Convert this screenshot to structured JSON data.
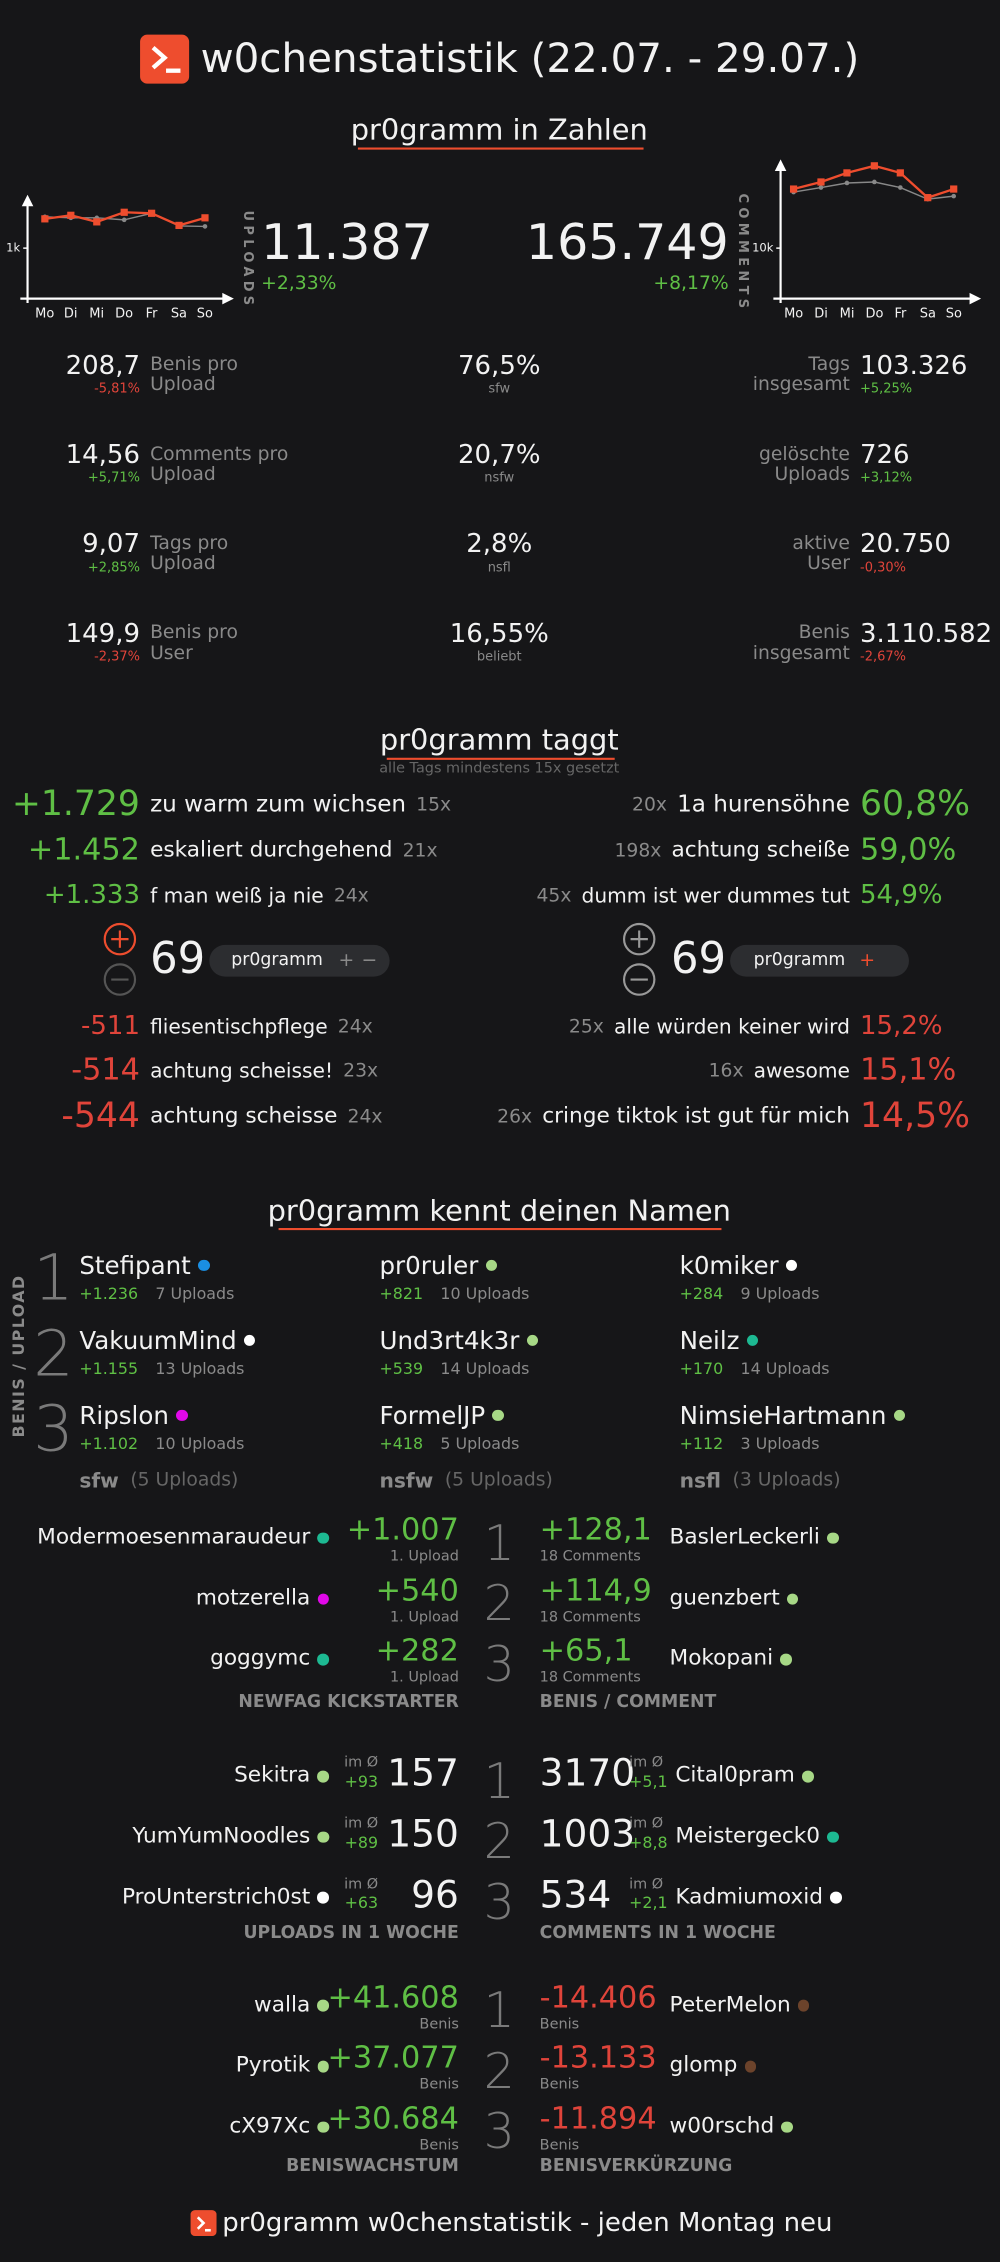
{
  "header": {
    "title": "w0chenstatistik (22.07. - 29.07.)"
  },
  "zahlen": {
    "title": "pr0gramm in Zahlen",
    "uploads": {
      "label": "UPLOADS",
      "value": "11.387",
      "change": "+2,33%"
    },
    "comments": {
      "label": "COMMENTS",
      "value": "165.749",
      "change": "+8,17%"
    },
    "left": [
      {
        "value": "208,7",
        "change": "-5,81%",
        "label": [
          "Benis pro",
          "Upload"
        ]
      },
      {
        "value": "14,56",
        "change": "+5,71%",
        "label": [
          "Comments pro",
          "Upload"
        ]
      },
      {
        "value": "9,07",
        "change": "+2,85%",
        "label": [
          "Tags pro",
          "Upload"
        ]
      },
      {
        "value": "149,9",
        "change": "-2,37%",
        "label": [
          "Benis pro",
          "User"
        ]
      }
    ],
    "middle": [
      {
        "value": "76,5%",
        "label": "sfw"
      },
      {
        "value": "20,7%",
        "label": "nsfw"
      },
      {
        "value": "2,8%",
        "label": "nsfl"
      },
      {
        "value": "16,55%",
        "label": "beliebt"
      }
    ],
    "right": [
      {
        "label": [
          "Tags",
          "insgesamt"
        ],
        "value": "103.326",
        "change": "+5,25%"
      },
      {
        "label": [
          "gelöschte",
          "Uploads"
        ],
        "value": "726",
        "change": "+3,12%"
      },
      {
        "label": [
          "aktive",
          "User"
        ],
        "value": "20.750",
        "change": "-0,30%"
      },
      {
        "label": [
          "Benis",
          "insgesamt"
        ],
        "value": "3.110.582",
        "change": "-2,67%"
      }
    ]
  },
  "chart_data": [
    {
      "type": "line",
      "categories": [
        "Mo",
        "Di",
        "Mi",
        "Do",
        "Fr",
        "Sa",
        "So"
      ],
      "ylim": [
        0,
        2000
      ],
      "yticks": [
        {
          "value": 1000,
          "label": "1k"
        }
      ],
      "series": [
        {
          "color": "#888888",
          "marker": "dot",
          "values": [
            1620,
            1600,
            1600,
            1560,
            1690,
            1440,
            1430
          ]
        },
        {
          "color": "#ee4d2e",
          "marker": "square",
          "values": [
            1580,
            1650,
            1520,
            1710,
            1690,
            1450,
            1600
          ]
        }
      ]
    },
    {
      "type": "line",
      "categories": [
        "Mo",
        "Di",
        "Mi",
        "Do",
        "Fr",
        "Sa",
        "So"
      ],
      "ylim": [
        0,
        27000
      ],
      "yticks": [
        {
          "value": 10000,
          "label": "10k"
        }
      ],
      "series": [
        {
          "color": "#888888",
          "marker": "dot",
          "values": [
            21100,
            22000,
            22900,
            23100,
            22000,
            19700,
            20300
          ]
        },
        {
          "color": "#ee4d2e",
          "marker": "square",
          "values": [
            21700,
            23100,
            24900,
            26300,
            24900,
            20000,
            21700
          ]
        }
      ]
    }
  ],
  "taggt": {
    "title": "pr0gramm taggt",
    "subtitle": "alle Tags mindestens 15x gesetzt",
    "top_benis": [
      {
        "value": "+1.729",
        "tag": "zu warm zum wichsen",
        "count": "15x"
      },
      {
        "value": "+1.452",
        "tag": "eskaliert durchgehend",
        "count": "21x"
      },
      {
        "value": "+1.333",
        "tag": "f man weiß ja nie",
        "count": "24x"
      }
    ],
    "low_benis": [
      {
        "value": "-511",
        "tag": "fliesentischpflege",
        "count": "24x"
      },
      {
        "value": "-514",
        "tag": "achtung scheisse!",
        "count": "23x"
      },
      {
        "value": "-544",
        "tag": "achtung scheisse",
        "count": "24x"
      }
    ],
    "top_ratio": [
      {
        "count": "20x",
        "tag": "1a hurensöhne",
        "value": "60,8%"
      },
      {
        "count": "198x",
        "tag": "achtung scheiße",
        "value": "59,0%"
      },
      {
        "count": "45x",
        "tag": "dumm ist wer dummes tut",
        "value": "54,9%"
      }
    ],
    "low_ratio": [
      {
        "count": "25x",
        "tag": "alle würden keiner wird",
        "value": "15,2%"
      },
      {
        "count": "16x",
        "tag": "awesome",
        "value": "15,1%"
      },
      {
        "count": "26x",
        "tag": "cringe tiktok ist gut für mich",
        "value": "14,5%"
      }
    ],
    "widgets": [
      {
        "score": "69",
        "tag": "pr0gramm",
        "plus": "+",
        "minus": "−"
      },
      {
        "score": "69",
        "tag": "pr0gramm",
        "plus": "+"
      }
    ]
  },
  "ranks": [
    "1",
    "2",
    "3"
  ],
  "namen": {
    "title": "pr0gramm kennt deinen Namen",
    "side_label": "BENIS / UPLOAD",
    "columns": [
      {
        "users": [
          {
            "name": "Stefipant",
            "color": "#1a8fe3",
            "benis": "+1.236",
            "uploads": "7 Uploads"
          },
          {
            "name": "VakuumMind",
            "color": "#ffffff",
            "benis": "+1.155",
            "uploads": "13 Uploads"
          },
          {
            "name": "Ripslon",
            "color": "#e108e9",
            "benis": "+1.102",
            "uploads": "10 Uploads"
          }
        ],
        "footer": "sfw",
        "footer_count": "(5 Uploads)"
      },
      {
        "users": [
          {
            "name": "pr0ruler",
            "color": "#a7d886",
            "benis": "+821",
            "uploads": "10 Uploads"
          },
          {
            "name": "Und3rt4k3r",
            "color": "#a7d886",
            "benis": "+539",
            "uploads": "14 Uploads"
          },
          {
            "name": "FormelJP",
            "color": "#a7d886",
            "benis": "+418",
            "uploads": "5 Uploads"
          }
        ],
        "footer": "nsfw",
        "footer_count": "(5 Uploads)"
      },
      {
        "users": [
          {
            "name": "k0miker",
            "color": "#ffffff",
            "benis": "+284",
            "uploads": "9 Uploads"
          },
          {
            "name": "Neilz",
            "color": "#1db992",
            "benis": "+170",
            "uploads": "14 Uploads"
          },
          {
            "name": "NimsieHartmann",
            "color": "#a7d886",
            "benis": "+112",
            "uploads": "3 Uploads"
          }
        ],
        "footer": "nsfl",
        "footer_count": "(3 Uploads)"
      }
    ]
  },
  "newfag": {
    "label": "NEWFAG KICKSTARTER",
    "rows": [
      {
        "name": "Modermoesenmaraudeur",
        "color": "#1db992",
        "value": "+1.007",
        "sub": "1. Upload"
      },
      {
        "name": "motzerella",
        "color": "#e108e9",
        "value": "+540",
        "sub": "1. Upload"
      },
      {
        "name": "goggymc",
        "color": "#1db992",
        "value": "+282",
        "sub": "1. Upload"
      }
    ]
  },
  "benis_comment": {
    "label": "BENIS / COMMENT",
    "rows": [
      {
        "value": "+128,1",
        "sub": "18 Comments",
        "name": "BaslerLeckerli",
        "color": "#a7d886"
      },
      {
        "value": "+114,9",
        "sub": "18 Comments",
        "name": "guenzbert",
        "color": "#a7d886"
      },
      {
        "value": "+65,1",
        "sub": "18 Comments",
        "name": "Mokopani",
        "color": "#a7d886"
      }
    ]
  },
  "uploads_woche": {
    "label": "UPLOADS IN 1 WOCHE",
    "avg_label": "im Ø",
    "rows": [
      {
        "name": "Sekitra",
        "color": "#a7d886",
        "avg": "+93",
        "value": "157"
      },
      {
        "name": "YumYumNoodles",
        "color": "#a7d886",
        "avg": "+89",
        "value": "150"
      },
      {
        "name": "ProUnterstrich0st",
        "color": "#ffffff",
        "avg": "+63",
        "value": "96"
      }
    ]
  },
  "comments_woche": {
    "label": "COMMENTS IN 1 WOCHE",
    "avg_label": "im Ø",
    "rows": [
      {
        "value": "3170",
        "avg": "+5,1",
        "name": "Cital0pram",
        "color": "#a7d886"
      },
      {
        "value": "1003",
        "avg": "+8,8",
        "name": "Meistergeck0",
        "color": "#1db992"
      },
      {
        "value": "534",
        "avg": "+2,1",
        "name": "Kadmiumoxid",
        "color": "#ffffff"
      }
    ]
  },
  "wachstum": {
    "label": "BENISWACHSTUM",
    "unit": "Benis",
    "rows": [
      {
        "name": "walla",
        "color": "#a7d886",
        "value": "+41.608"
      },
      {
        "name": "Pyrotik",
        "color": "#a7d886",
        "value": "+37.077"
      },
      {
        "name": "cX97Xc",
        "color": "#a7d886",
        "value": "+30.684"
      }
    ]
  },
  "verkuerzung": {
    "label": "BENISVERKÜRZUNG",
    "unit": "Benis",
    "rows": [
      {
        "value": "-14.406",
        "name": "PeterMelon",
        "color": "#6c432b"
      },
      {
        "value": "-13.133",
        "name": "glomp",
        "color": "#6c432b"
      },
      {
        "value": "-11.894",
        "name": "w00rschd",
        "color": "#a7d886"
      }
    ]
  },
  "footer": {
    "text": "pr0gramm w0chenstatistik - jeden Montag neu"
  }
}
